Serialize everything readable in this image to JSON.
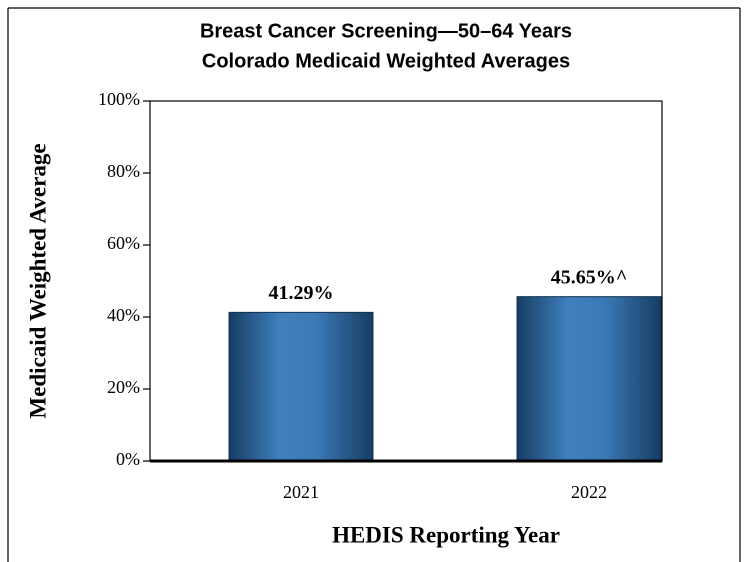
{
  "chart_data": {
    "type": "bar",
    "title": "Breast Cancer Screening—50–64 Years",
    "subtitle": "Colorado Medicaid Weighted Averages",
    "x_label": "HEDIS Reporting Year",
    "y_label": "Medicaid Weighted Average",
    "categories": [
      "2021",
      "2022"
    ],
    "values": [
      41.29,
      45.65
    ],
    "value_labels": [
      "41.29%",
      "45.65%^"
    ],
    "color": "#2f6aa3",
    "ylim": [
      0,
      100
    ],
    "yticks": [
      {
        "value": 0,
        "label": "0%"
      },
      {
        "value": 20,
        "label": "20%"
      },
      {
        "value": 40,
        "label": "40%"
      },
      {
        "value": 60,
        "label": "60%"
      },
      {
        "value": 80,
        "label": "80%"
      },
      {
        "value": 100,
        "label": "100%"
      }
    ],
    "grid": false
  }
}
